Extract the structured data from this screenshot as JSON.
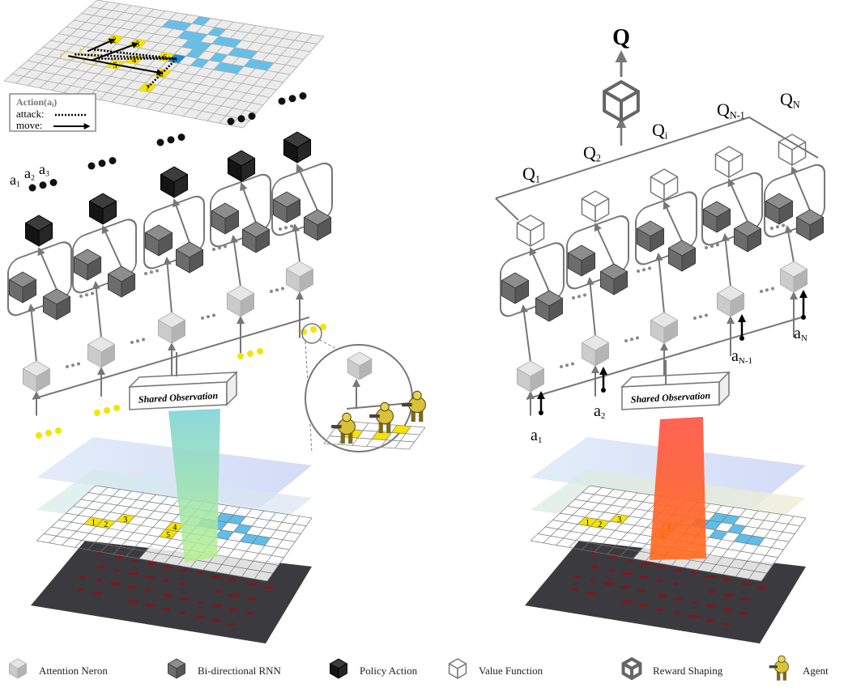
{
  "left_panel": {
    "action_legend": {
      "prefix": "Action(a",
      "sub": "i",
      "suffix": ")",
      "attack": "attack:",
      "move": "move:"
    },
    "top_grid_labels": [
      "1",
      "2",
      "3",
      "4",
      "5",
      "6",
      "7"
    ],
    "outputs": [
      {
        "base": "a",
        "sub": "1"
      },
      {
        "base": "a",
        "sub": "2"
      },
      {
        "base": "a",
        "sub": "3"
      }
    ],
    "shared_observation": "Shared Observation",
    "grid_labels": [
      "1",
      "2",
      "3",
      "4",
      "5"
    ]
  },
  "right_panel": {
    "q": "Q",
    "q_labels": [
      {
        "base": "Q",
        "sub": "1"
      },
      {
        "base": "Q",
        "sub": "2"
      },
      {
        "base": "Q",
        "sub": "i"
      },
      {
        "base": "Q",
        "sub": "N-1"
      },
      {
        "base": "Q",
        "sub": "N"
      }
    ],
    "a_labels": [
      {
        "base": "a",
        "sub": "1"
      },
      {
        "base": "a",
        "sub": "2"
      },
      {
        "base": "a",
        "sub": "N-1"
      },
      {
        "base": "a",
        "sub": "N"
      }
    ],
    "shared_observation": "Shared Observation",
    "grid_labels": [
      "1",
      "2",
      "3",
      "4",
      "5"
    ]
  },
  "legend": [
    "Attention Neron",
    "Bi-directional RNN",
    "Policy Action",
    "Value Function",
    "Reward Shaping",
    "Agent"
  ]
}
